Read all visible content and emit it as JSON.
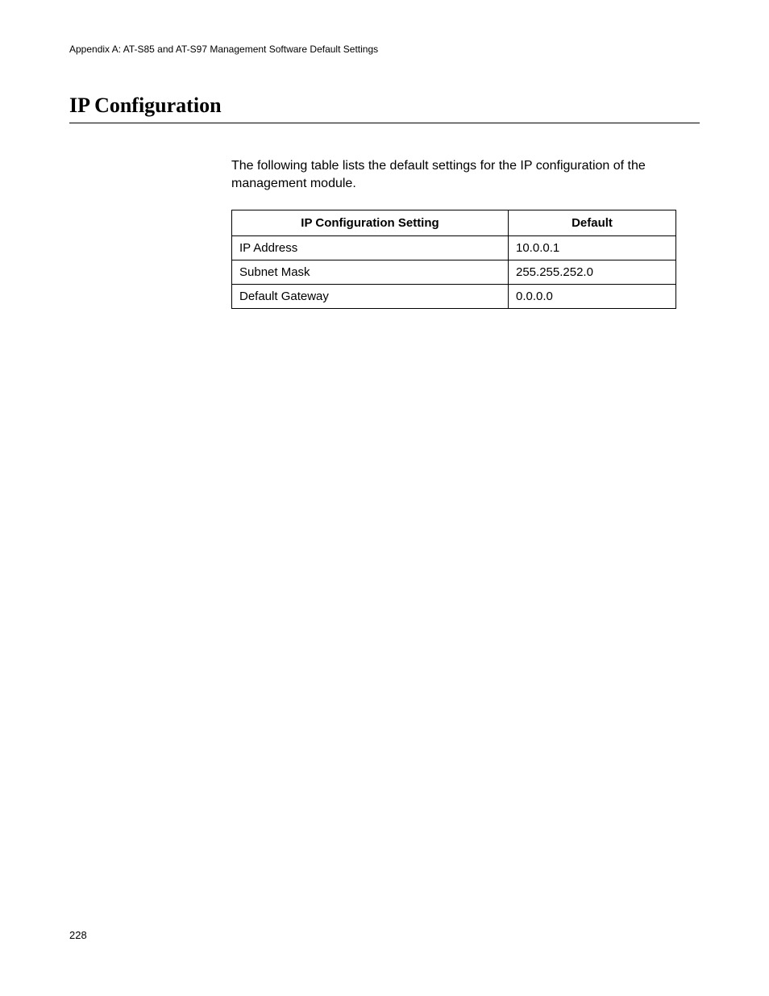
{
  "header": {
    "appendix_text": "Appendix A: AT-S85 and AT-S97 Management Software Default Settings"
  },
  "section": {
    "title": "IP Configuration",
    "intro": "The following table lists the default settings for the IP configuration of the management module."
  },
  "table": {
    "columns": [
      "IP Configuration Setting",
      "Default"
    ],
    "rows": [
      [
        "IP Address",
        "10.0.0.1"
      ],
      [
        "Subnet Mask",
        "255.255.252.0"
      ],
      [
        "Default Gateway",
        "0.0.0.0"
      ]
    ],
    "border_color": "#000000",
    "header_fontsize": 15,
    "cell_fontsize": 15,
    "col1_width": 343,
    "total_width": 552
  },
  "footer": {
    "page_number": "228"
  },
  "styles": {
    "background_color": "#ffffff",
    "text_color": "#000000",
    "title_fontsize": 26,
    "header_fontsize": 12,
    "body_fontsize": 16
  }
}
